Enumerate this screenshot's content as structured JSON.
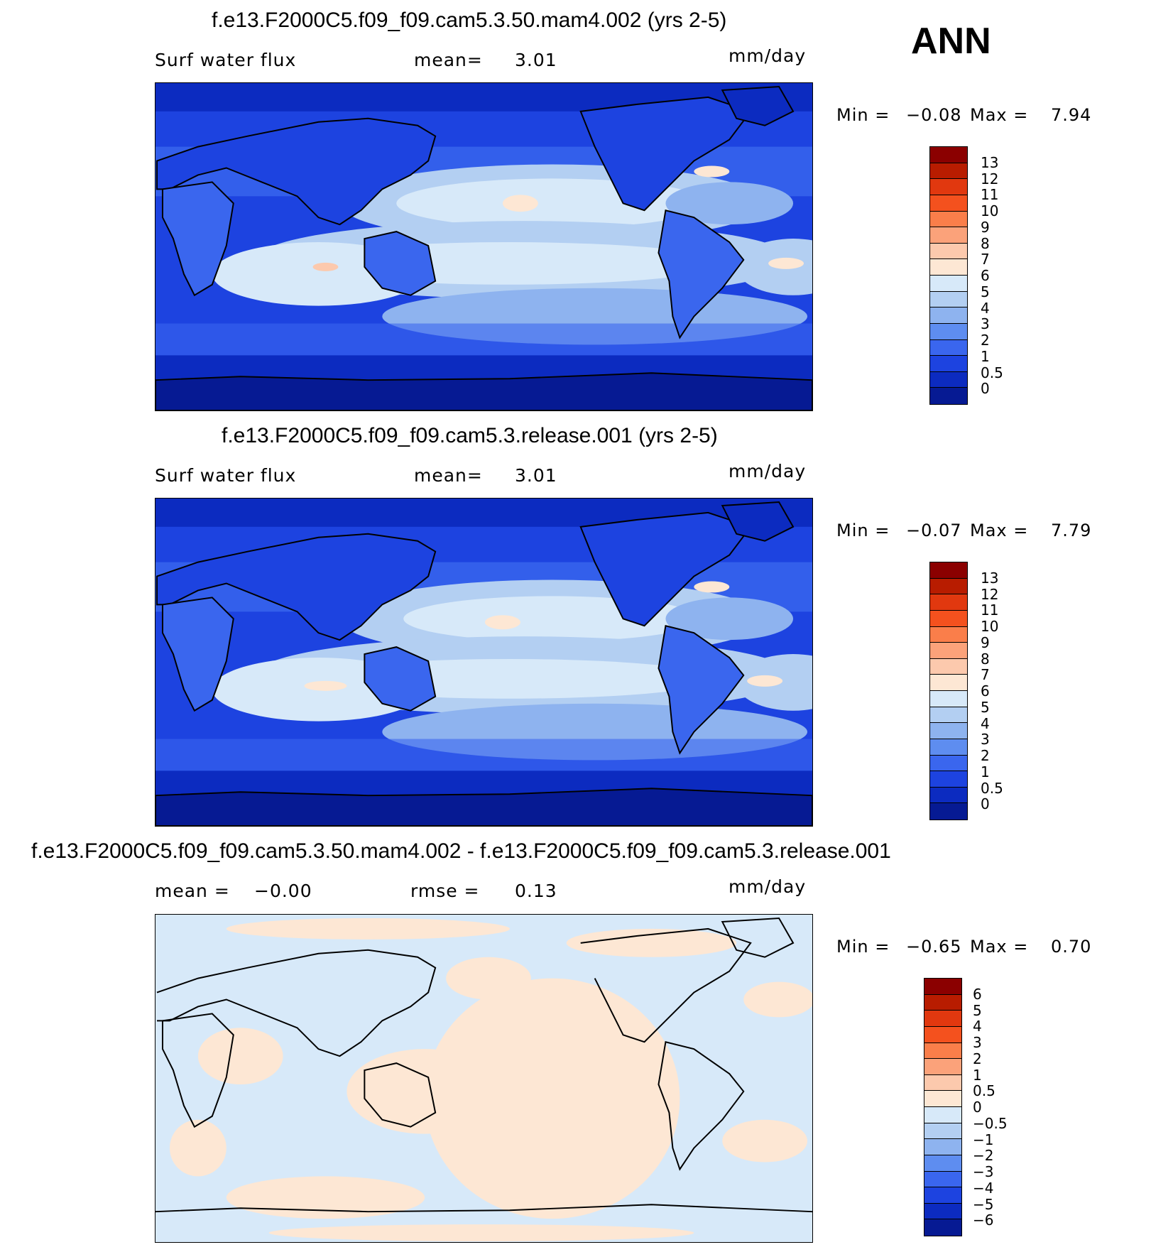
{
  "season": "ANN",
  "panels": [
    {
      "title": "f.e13.F2000C5.f09_f09.cam5.3.50.mam4.002 (yrs 2-5)",
      "left_label": "Surf water flux",
      "mid_label": "mean=",
      "mid_value": "3.01",
      "units": "mm/day",
      "min_label": "Min =",
      "min_value": "−0.08",
      "max_label": "Max =",
      "max_value": "7.94",
      "colorbar": {
        "labels": [
          "13",
          "12",
          "11",
          "10",
          "9",
          "8",
          "7",
          "6",
          "5",
          "4",
          "3",
          "2",
          "1",
          "0.5",
          "0"
        ],
        "colors": [
          "#8b0000",
          "#b81c00",
          "#e1380f",
          "#f4511e",
          "#fa7e4a",
          "#fba27a",
          "#fcc9ad",
          "#fde7d4",
          "#d7e9f9",
          "#b3cff2",
          "#8eb3ef",
          "#5e8df0",
          "#3a66ee",
          "#1d43e0",
          "#0c2bc0",
          "#061a93"
        ]
      }
    },
    {
      "title": "f.e13.F2000C5.f09_f09.cam5.3.release.001 (yrs 2-5)",
      "left_label": "Surf water flux",
      "mid_label": "mean=",
      "mid_value": "3.01",
      "units": "mm/day",
      "min_label": "Min =",
      "min_value": "−0.07",
      "max_label": "Max =",
      "max_value": "7.79",
      "colorbar": {
        "labels": [
          "13",
          "12",
          "11",
          "10",
          "9",
          "8",
          "7",
          "6",
          "5",
          "4",
          "3",
          "2",
          "1",
          "0.5",
          "0"
        ],
        "colors": [
          "#8b0000",
          "#b81c00",
          "#e1380f",
          "#f4511e",
          "#fa7e4a",
          "#fba27a",
          "#fcc9ad",
          "#fde7d4",
          "#d7e9f9",
          "#b3cff2",
          "#8eb3ef",
          "#5e8df0",
          "#3a66ee",
          "#1d43e0",
          "#0c2bc0",
          "#061a93"
        ]
      }
    },
    {
      "title": "f.e13.F2000C5.f09_f09.cam5.3.50.mam4.002 - f.e13.F2000C5.f09_f09.cam5.3.release.001",
      "left_label": "mean =",
      "left_value": "−0.00",
      "mid_label": "rmse =",
      "mid_value": "0.13",
      "units": "mm/day",
      "min_label": "Min =",
      "min_value": "−0.65",
      "max_label": "Max =",
      "max_value": "0.70",
      "colorbar": {
        "labels": [
          "6",
          "5",
          "4",
          "3",
          "2",
          "1",
          "0.5",
          "0",
          "−0.5",
          "−1",
          "−2",
          "−3",
          "−4",
          "−5",
          "−6"
        ],
        "colors": [
          "#8b0000",
          "#b81c00",
          "#e1380f",
          "#f4511e",
          "#fa7e4a",
          "#fba27a",
          "#fcc9ad",
          "#fde7d4",
          "#d7e9f9",
          "#b3cff2",
          "#8eb3ef",
          "#5e8df0",
          "#3a66ee",
          "#1d43e0",
          "#0c2bc0",
          "#061a93"
        ]
      }
    }
  ]
}
